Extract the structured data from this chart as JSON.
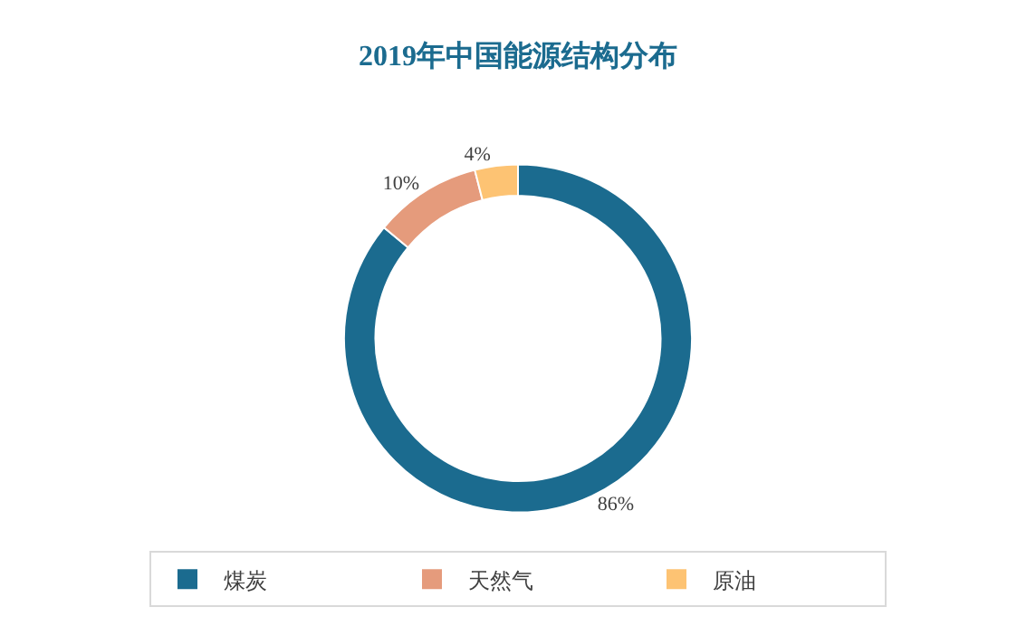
{
  "chart_data": {
    "type": "donut",
    "title": "2019年中国能源结构分布",
    "categories": [
      "煤炭",
      "天然气",
      "原油"
    ],
    "values": [
      86,
      10,
      4
    ],
    "colors": [
      "#1b6b8f",
      "#e59b7c",
      "#fdc373"
    ],
    "value_labels": [
      "86%",
      "10%",
      "4%"
    ],
    "legend": "bottom"
  }
}
